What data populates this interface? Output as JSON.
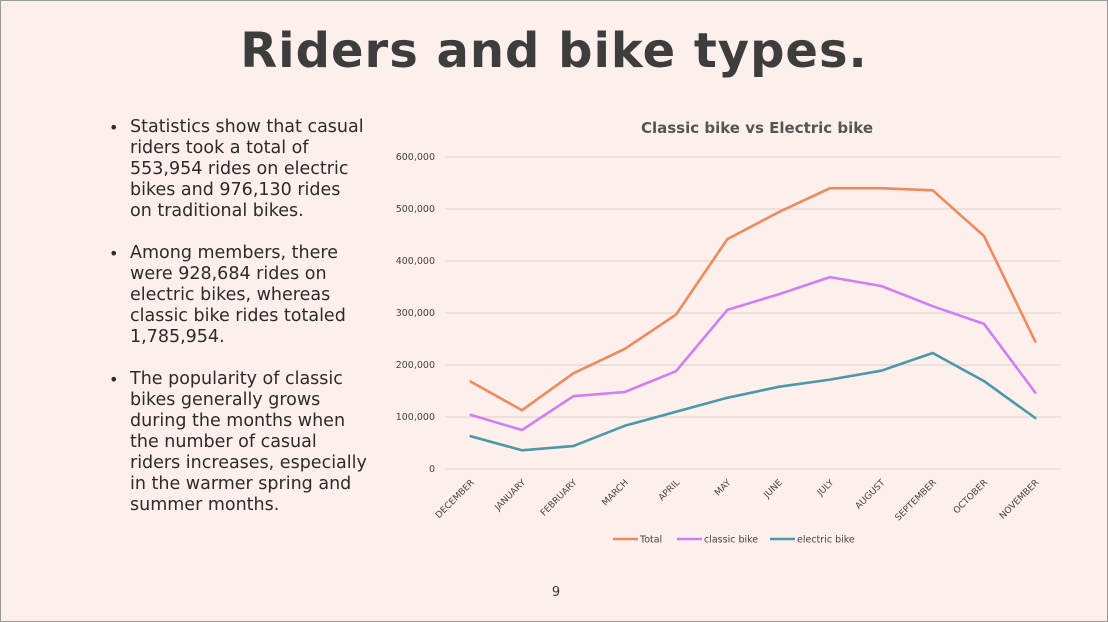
{
  "slide": {
    "title": "Riders and bike types.",
    "bullets": [
      "Statistics show that casual riders took a total of 553,954 rides on electric bikes and 976,130 rides on traditional bikes.",
      "Among members, there were 928,684 rides on electric bikes, whereas classic bike rides totaled 1,785,954.",
      "The popularity of classic bikes generally grows during the months when the number of casual riders increases, especially in the warmer spring and summer months."
    ],
    "page_number": "9"
  },
  "chart_data": {
    "type": "line",
    "title": "Classic bike vs Electric bike",
    "categories": [
      "DECEMBER",
      "JANUARY",
      "FEBRUARY",
      "MARCH",
      "APRIL",
      "MAY",
      "JUNE",
      "JULY",
      "AUGUST",
      "SEPTEMBER",
      "OCTOBER",
      "NOVEMBER"
    ],
    "series": [
      {
        "name": "Total",
        "color": "#f08a5d",
        "values": [
          168000,
          113000,
          184000,
          231000,
          297000,
          442000,
          494000,
          540000,
          540000,
          536000,
          448000,
          245000
        ]
      },
      {
        "name": "classic bike",
        "color": "#cf7ef7",
        "values": [
          104000,
          75000,
          140000,
          148000,
          188000,
          306000,
          336000,
          369000,
          352000,
          313000,
          279000,
          147000
        ]
      },
      {
        "name": "electric bike",
        "color": "#4b98ab",
        "values": [
          63000,
          36000,
          44000,
          83000,
          110000,
          137000,
          158000,
          172000,
          189000,
          223000,
          169000,
          98000
        ]
      }
    ],
    "y_ticks": [
      "0",
      "100,000",
      "200,000",
      "300,000",
      "400,000",
      "500,000",
      "600,000"
    ],
    "ylim": [
      0,
      600000
    ],
    "grid": true,
    "legend_position": "bottom"
  }
}
